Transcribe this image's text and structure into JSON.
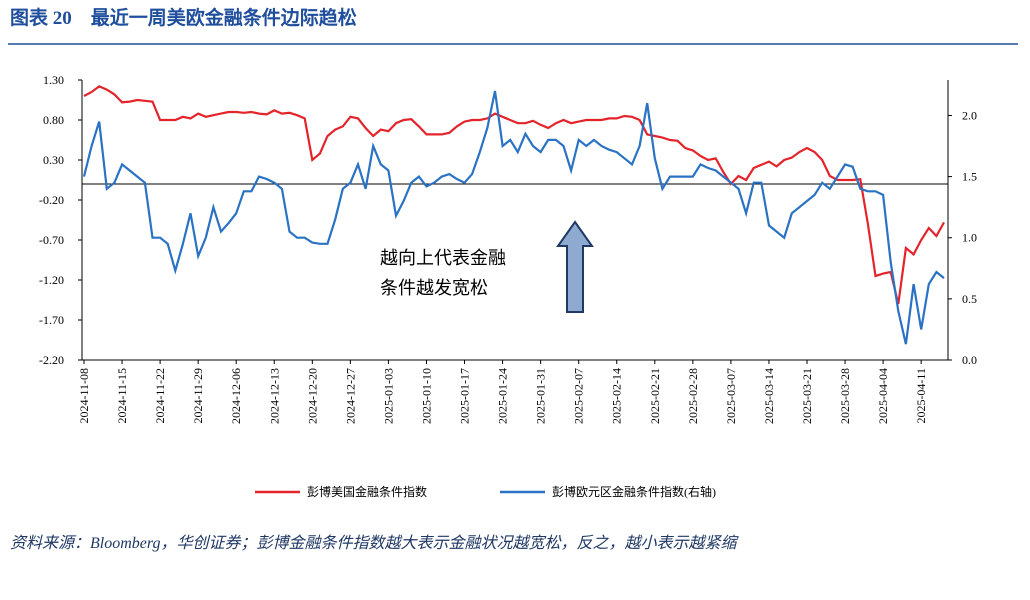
{
  "title": "图表 20　最近一周美欧金融条件边际趋松",
  "source_note": "资料来源：Bloomberg，华创证券；彭博金融条件指数越大表示金融状况越宽松，反之，越小表示越紧缩",
  "chart_data": {
    "type": "line",
    "annotation": [
      "越向上代表金融",
      "条件越发宽松"
    ],
    "categories": [
      "2024-11-08",
      null,
      null,
      null,
      null,
      "2024-11-15",
      null,
      null,
      null,
      null,
      "2024-11-22",
      null,
      null,
      null,
      null,
      "2024-11-29",
      null,
      null,
      null,
      null,
      "2024-12-06",
      null,
      null,
      null,
      null,
      "2024-12-13",
      null,
      null,
      null,
      null,
      "2024-12-20",
      null,
      null,
      null,
      null,
      "2024-12-27",
      null,
      null,
      null,
      null,
      "2025-01-03",
      null,
      null,
      null,
      null,
      "2025-01-10",
      null,
      null,
      null,
      null,
      "2025-01-17",
      null,
      null,
      null,
      null,
      "2025-01-24",
      null,
      null,
      null,
      null,
      "2025-01-31",
      null,
      null,
      null,
      null,
      "2025-02-07",
      null,
      null,
      null,
      null,
      "2025-02-14",
      null,
      null,
      null,
      null,
      "2025-02-21",
      null,
      null,
      null,
      null,
      "2025-02-28",
      null,
      null,
      null,
      null,
      "2025-03-07",
      null,
      null,
      null,
      null,
      "2025-03-14",
      null,
      null,
      null,
      null,
      "2025-03-21",
      null,
      null,
      null,
      null,
      "2025-03-28",
      null,
      null,
      null,
      null,
      "2025-04-04",
      null,
      null,
      null,
      null,
      "2025-04-11",
      null,
      null,
      null
    ],
    "series": [
      {
        "name": "彭博美国金融条件指数",
        "color": "#e3242b",
        "axis": "y",
        "values": [
          1.1,
          1.15,
          1.22,
          1.18,
          1.12,
          1.02,
          1.03,
          1.05,
          1.04,
          1.03,
          0.8,
          0.8,
          0.8,
          0.84,
          0.82,
          0.88,
          0.84,
          0.86,
          0.88,
          0.9,
          0.9,
          0.89,
          0.9,
          0.88,
          0.87,
          0.92,
          0.88,
          0.89,
          0.86,
          0.82,
          0.3,
          0.38,
          0.6,
          0.68,
          0.72,
          0.84,
          0.82,
          0.7,
          0.6,
          0.68,
          0.66,
          0.76,
          0.8,
          0.81,
          0.72,
          0.62,
          0.62,
          0.62,
          0.64,
          0.72,
          0.78,
          0.8,
          0.8,
          0.82,
          0.88,
          0.84,
          0.8,
          0.76,
          0.76,
          0.79,
          0.74,
          0.7,
          0.76,
          0.8,
          0.76,
          0.78,
          0.8,
          0.8,
          0.8,
          0.82,
          0.82,
          0.85,
          0.84,
          0.8,
          0.62,
          0.6,
          0.58,
          0.55,
          0.54,
          0.45,
          0.42,
          0.35,
          0.3,
          0.32,
          0.15,
          0.0,
          0.1,
          0.05,
          0.2,
          0.24,
          0.28,
          0.22,
          0.3,
          0.33,
          0.4,
          0.45,
          0.4,
          0.3,
          0.1,
          0.05,
          0.05,
          0.05,
          0.06,
          -0.5,
          -1.15,
          -1.12,
          -1.1,
          -1.5,
          -0.8,
          -0.88,
          -0.7,
          -0.55,
          -0.65,
          -0.48
        ]
      },
      {
        "name": "彭博欧元区金融条件指数(右轴)",
        "color": "#2a72c4",
        "axis": "y2",
        "values": [
          1.5,
          1.75,
          1.95,
          1.4,
          1.45,
          1.6,
          1.55,
          1.5,
          1.45,
          1.0,
          1.0,
          0.95,
          0.73,
          0.95,
          1.2,
          0.85,
          1.0,
          1.25,
          1.05,
          1.12,
          1.2,
          1.38,
          1.38,
          1.5,
          1.48,
          1.45,
          1.4,
          1.05,
          1.0,
          1.0,
          0.96,
          0.95,
          0.95,
          1.15,
          1.4,
          1.45,
          1.6,
          1.4,
          1.75,
          1.6,
          1.55,
          1.18,
          1.3,
          1.45,
          1.5,
          1.42,
          1.45,
          1.5,
          1.52,
          1.48,
          1.45,
          1.52,
          1.7,
          1.9,
          2.2,
          1.75,
          1.8,
          1.7,
          1.85,
          1.75,
          1.7,
          1.8,
          1.8,
          1.75,
          1.55,
          1.8,
          1.75,
          1.8,
          1.75,
          1.72,
          1.7,
          1.65,
          1.6,
          1.75,
          2.1,
          1.65,
          1.4,
          1.5,
          1.5,
          1.5,
          1.5,
          1.6,
          1.57,
          1.55,
          1.5,
          1.45,
          1.4,
          1.2,
          1.45,
          1.45,
          1.1,
          1.05,
          1.0,
          1.2,
          1.25,
          1.3,
          1.35,
          1.45,
          1.4,
          1.5,
          1.6,
          1.58,
          1.4,
          1.38,
          1.38,
          1.35,
          0.8,
          0.4,
          0.13,
          0.62,
          0.25,
          0.62,
          0.72,
          0.67
        ]
      }
    ],
    "ylim": [
      -2.2,
      1.3
    ],
    "yticks": [
      {
        "value": 1.3,
        "label": "1.30"
      },
      {
        "value": 0.8,
        "label": "0.80"
      },
      {
        "value": 0.3,
        "label": "0.30"
      },
      {
        "value": -0.2,
        "label": "-0.20"
      },
      {
        "value": -0.7,
        "label": "-0.70"
      },
      {
        "value": -1.2,
        "label": "-1.20"
      },
      {
        "value": -1.7,
        "label": "-1.70"
      },
      {
        "value": -2.2,
        "label": "-2.20"
      }
    ],
    "y2lim": [
      0,
      2.29
    ],
    "y2ticks": [
      {
        "value": 2.0,
        "label": "2.0"
      },
      {
        "value": 1.5,
        "label": "1.5"
      },
      {
        "value": 1.0,
        "label": "1.0"
      },
      {
        "value": 0.5,
        "label": "0.5"
      },
      {
        "value": 0.0,
        "label": "0.0"
      }
    ],
    "legend": "bottom"
  }
}
